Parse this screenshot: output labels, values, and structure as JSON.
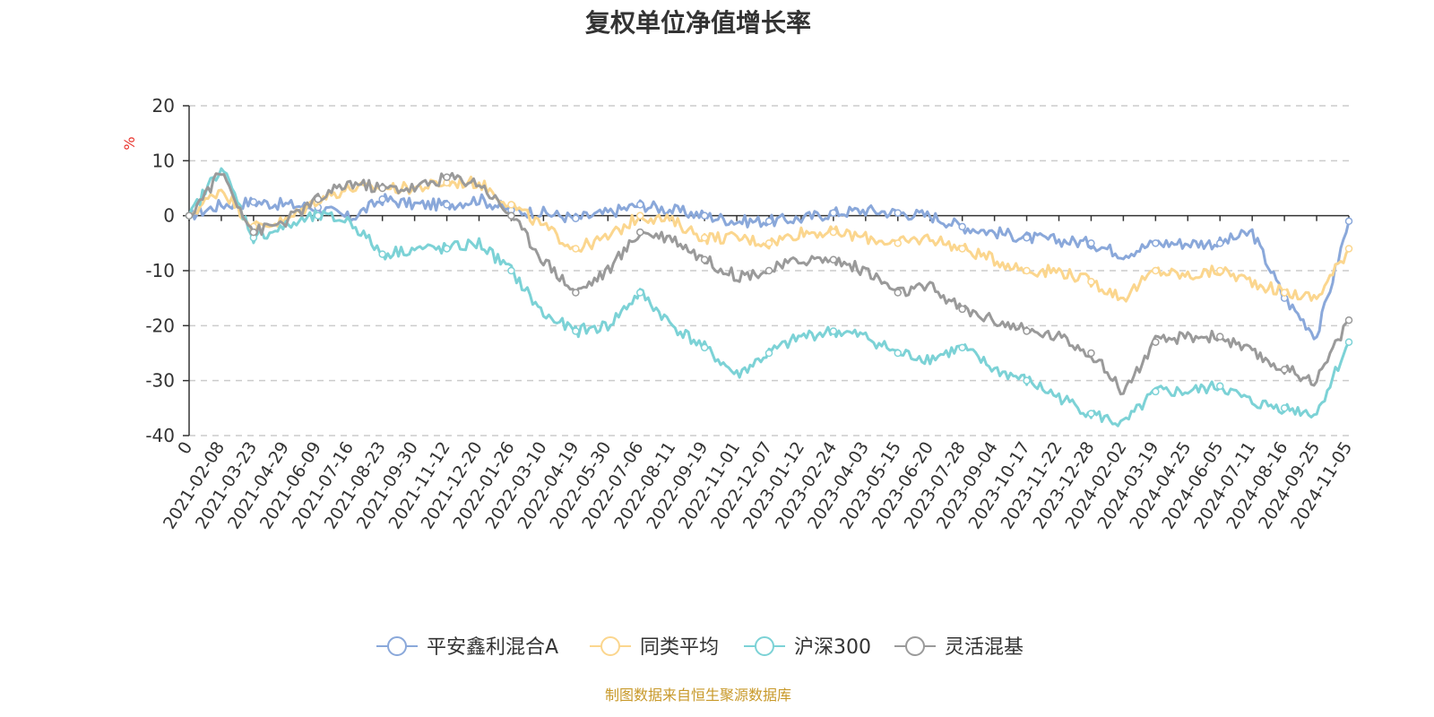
{
  "chart_data": {
    "type": "line",
    "title": "复权单位净值增长率",
    "ylabel": "%",
    "ylim": [
      -40,
      20
    ],
    "yticks": [
      "20",
      "10",
      "0",
      "-10",
      "-20",
      "-30",
      "-40"
    ],
    "categories": [
      "0",
      "2021-02-08",
      "2021-03-23",
      "2021-04-29",
      "2021-06-09",
      "2021-07-16",
      "2021-08-23",
      "2021-09-30",
      "2021-11-12",
      "2021-12-20",
      "2022-01-26",
      "2022-03-10",
      "2022-04-19",
      "2022-05-30",
      "2022-07-06",
      "2022-08-11",
      "2022-09-19",
      "2022-11-01",
      "2022-12-07",
      "2023-01-12",
      "2023-02-24",
      "2023-04-03",
      "2023-05-15",
      "2023-06-20",
      "2023-07-28",
      "2023-09-04",
      "2023-10-17",
      "2023-11-22",
      "2023-12-28",
      "2024-02-02",
      "2024-03-19",
      "2024-04-25",
      "2024-06-05",
      "2024-07-11",
      "2024-08-16",
      "2024-09-25",
      "2024-11-05"
    ],
    "series": [
      {
        "name": "平安鑫利混合A",
        "color": "#8aa8da",
        "values": [
          0,
          2,
          2.5,
          2,
          1.5,
          -0.5,
          3,
          2,
          2,
          3,
          1,
          0.5,
          -0.5,
          0.5,
          2,
          1,
          0,
          -1,
          -1,
          -0.5,
          0.5,
          1,
          0.5,
          0,
          -2,
          -3,
          -4,
          -4.5,
          -5,
          -7,
          -5,
          -5,
          -5,
          -3,
          -15,
          -22,
          -1
        ]
      },
      {
        "name": "同类平均",
        "color": "#fbd68e",
        "values": [
          0,
          5,
          -2,
          -1,
          3,
          5,
          5,
          5,
          6,
          6,
          2,
          -2,
          -6,
          -4,
          0,
          -1,
          -4,
          -4,
          -5,
          -3,
          -3,
          -4,
          -5,
          -4,
          -6,
          -8,
          -10,
          -10,
          -12,
          -15,
          -10,
          -11,
          -10,
          -12,
          -14,
          -15,
          -6
        ]
      },
      {
        "name": "沪深300",
        "color": "#7cd2d6",
        "values": [
          0,
          9,
          -4,
          -2,
          0,
          -1,
          -7,
          -6,
          -6,
          -5,
          -10,
          -18,
          -21,
          -20,
          -14,
          -20,
          -24,
          -29,
          -25,
          -22,
          -21,
          -22,
          -25,
          -26,
          -24,
          -28,
          -30,
          -33,
          -36,
          -38,
          -32,
          -32,
          -31,
          -34,
          -35,
          -36,
          -23
        ]
      },
      {
        "name": "灵活混基",
        "color": "#9a9a9a",
        "values": [
          0,
          8,
          -3,
          -1,
          3,
          6,
          5,
          5,
          7,
          6,
          0,
          -8,
          -14,
          -10,
          -3,
          -4,
          -8,
          -11,
          -10,
          -8,
          -8,
          -10,
          -14,
          -13,
          -17,
          -19,
          -21,
          -22,
          -25,
          -32,
          -23,
          -22,
          -22,
          -25,
          -28,
          -30,
          -19
        ]
      }
    ],
    "legend_position": "bottom-center",
    "grid": true
  },
  "source": "制图数据来自恒生聚源数据库"
}
